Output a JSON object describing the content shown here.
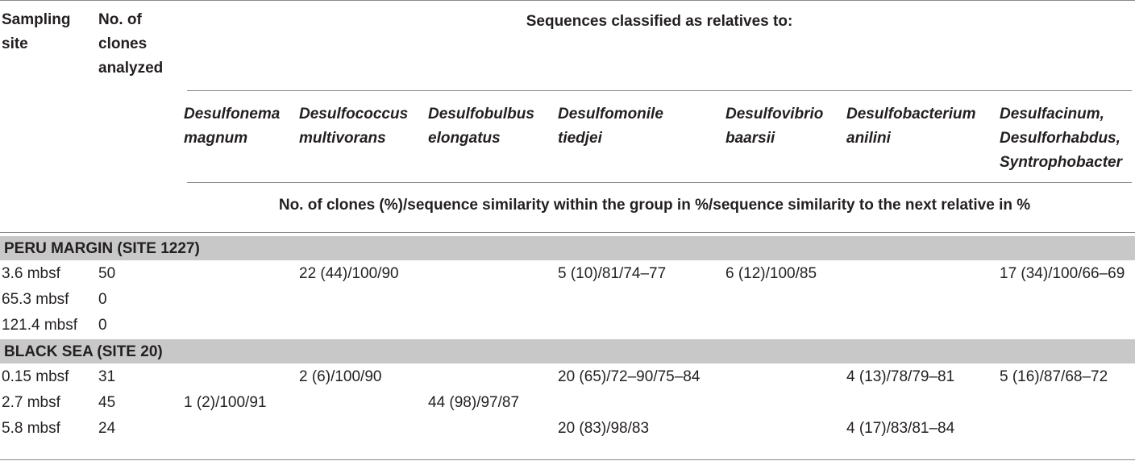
{
  "header": {
    "sampling_site": [
      "Sampling",
      "site"
    ],
    "clones_analyzed": [
      "No. of",
      "clones",
      "analyzed"
    ],
    "span_title": "Sequences classified as relatives to:",
    "groups": [
      [
        "Desulfonema",
        "magnum"
      ],
      [
        "Desulfococcus",
        "multivorans"
      ],
      [
        "Desulfobulbus",
        "elongatus"
      ],
      [
        "Desulfomonile",
        "tiedjei"
      ],
      [
        "Desulfovibrio",
        "baarsii"
      ],
      [
        "Desulfobacterium",
        "anilini"
      ],
      [
        "Desulfacinum,",
        "Desulforhabdus,",
        "Syntrophobacter"
      ]
    ],
    "units_note": "No. of clones (%)/sequence similarity within the group in %/sequence similarity to the next relative in %"
  },
  "sections": [
    {
      "title": "PERU MARGIN (SITE 1227)",
      "rows": [
        {
          "site": "3.6 mbsf",
          "n": "50",
          "cells": [
            "",
            "22 (44)/100/90",
            "",
            "5 (10)/81/74–77",
            "6 (12)/100/85",
            "",
            "17 (34)/100/66–69"
          ]
        },
        {
          "site": "65.3 mbsf",
          "n": "0",
          "cells": [
            "",
            "",
            "",
            "",
            "",
            "",
            ""
          ]
        },
        {
          "site": "121.4 mbsf",
          "n": "0",
          "cells": [
            "",
            "",
            "",
            "",
            "",
            "",
            ""
          ]
        }
      ]
    },
    {
      "title": "BLACK SEA (SITE 20)",
      "rows": [
        {
          "site": "0.15 mbsf",
          "n": "31",
          "cells": [
            "",
            "2 (6)/100/90",
            "",
            "20 (65)/72–90/75–84",
            "",
            "4 (13)/78/79–81",
            "5 (16)/87/68–72"
          ]
        },
        {
          "site": "2.7 mbsf",
          "n": "45",
          "cells": [
            "1 (2)/100/91",
            "",
            "44 (98)/97/87",
            "",
            "",
            "",
            ""
          ]
        },
        {
          "site": "5.8 mbsf",
          "n": "24",
          "cells": [
            "",
            "",
            "",
            "20 (83)/98/83",
            "",
            "4 (17)/83/81–84",
            ""
          ]
        }
      ]
    }
  ]
}
